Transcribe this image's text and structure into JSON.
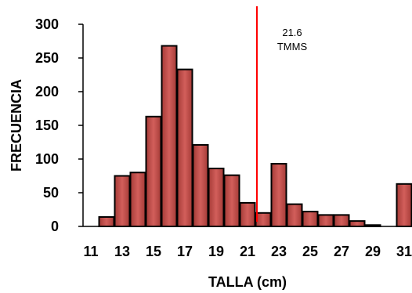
{
  "chart_data": {
    "type": "bar",
    "title": "",
    "xlabel": "TALLA (cm)",
    "ylabel": "FRECUENCIA",
    "x": [
      11,
      12,
      13,
      14,
      15,
      16,
      17,
      18,
      19,
      20,
      21,
      22,
      23,
      24,
      25,
      26,
      27,
      28,
      29,
      30,
      31
    ],
    "values": [
      0,
      14,
      75,
      80,
      163,
      268,
      233,
      121,
      86,
      76,
      35,
      20,
      93,
      33,
      22,
      17,
      17,
      8,
      2,
      0,
      63
    ],
    "xticks": [
      "11",
      "13",
      "15",
      "17",
      "19",
      "21",
      "23",
      "25",
      "27",
      "29",
      "31"
    ],
    "yticks": [
      "0",
      "50",
      "100",
      "150",
      "200",
      "250",
      "300"
    ],
    "ylim": [
      0,
      300
    ],
    "grid": false,
    "bar_color": "#c0504d",
    "bar_edge_color": "#000000",
    "reference_line": {
      "x": 21.6,
      "color": "#ff0000",
      "label_value": "21.6",
      "label_text": "TMMS"
    }
  }
}
